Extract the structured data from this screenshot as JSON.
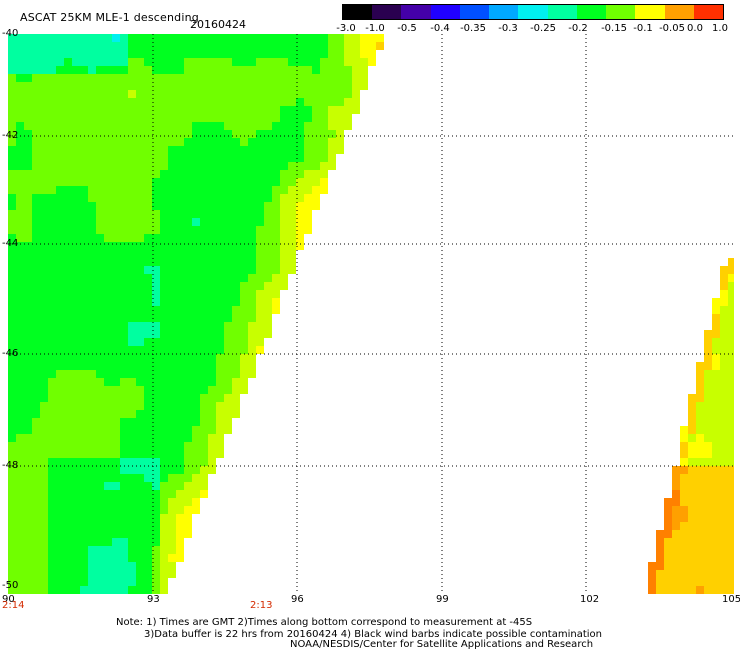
{
  "title": "ASCAT 25KM MLE-1 descending",
  "date": "20160424",
  "colorbar": {
    "labels": [
      "-3.0",
      "-1.0",
      "-0.5",
      "-0.4",
      "-0.35",
      "-0.3",
      "-0.25",
      "-0.2",
      "-0.15",
      "-0.1",
      "-0.05",
      "0.0",
      "1.0"
    ],
    "colors": [
      "#000000",
      "#2a0050",
      "#4400a8",
      "#2000ff",
      "#0050ff",
      "#00a8ff",
      "#00f0f0",
      "#00ffa0",
      "#00ff20",
      "#70ff00",
      "#ffff00",
      "#ffa000",
      "#ff3000"
    ]
  },
  "map": {
    "lon_labels": [
      "90",
      "93",
      "96",
      "99",
      "102",
      "105"
    ],
    "lat_labels": [
      "-40",
      "-42",
      "-44",
      "-46",
      "-48",
      "-50"
    ],
    "time_labels": [
      "2:14",
      "2:13"
    ],
    "lon_range": [
      90,
      105
    ],
    "lat_range": [
      -50,
      -40
    ]
  },
  "notes": {
    "line1": "Note: 1) Times are GMT 2)Times along bottom correspond to measurement at -45S",
    "line2": "3)Data buffer is 22 hrs from 20160424 4) Black wind barbs indicate possible contamination",
    "credit": "NOAA/NESDIS/Center for Satellite Applications and Research"
  }
}
